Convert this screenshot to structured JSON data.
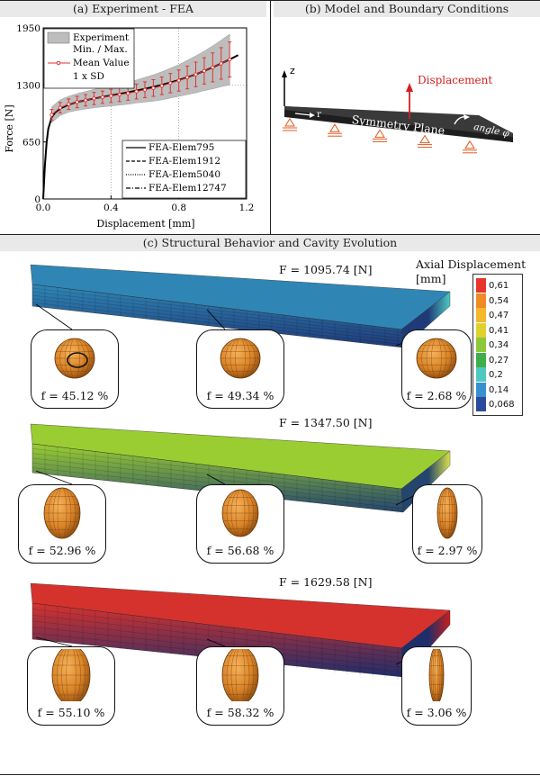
{
  "panels": {
    "a_title": "(a) Experiment - FEA",
    "b_title": "(b) Model and Boundary Conditions",
    "c_title": "(c) Structural Behavior and Cavity Evolution"
  },
  "chart_data": {
    "type": "line",
    "xlabel": "Displacement [mm]",
    "ylabel": "Force [N]",
    "xlim": [
      0,
      1.2
    ],
    "ylim": [
      0,
      1950
    ],
    "xticks": [
      "0.0",
      "0.4",
      "0.8",
      "1.2"
    ],
    "yticks": [
      "0",
      "650",
      "1300",
      "1950"
    ],
    "grid": "dotted reference lines at x=0.4, x=0.8 and y=1300",
    "legend_top": [
      "Experiment",
      "Min. / Max.",
      "Mean Value",
      "1 x SD"
    ],
    "legend_bottom": [
      "FEA-Elem795",
      "FEA-Elem1912",
      "FEA-Elem5040",
      "FEA-Elem12747"
    ],
    "series": [
      {
        "name": "FEA-Elem795",
        "style": "solid",
        "x": [
          0,
          0.01,
          0.02,
          0.03,
          0.05,
          0.07,
          0.1,
          0.15,
          0.2,
          0.3,
          0.4,
          0.5,
          0.6,
          0.7,
          0.8,
          0.9,
          1.0,
          1.1,
          1.15
        ],
        "y": [
          0,
          380,
          640,
          800,
          930,
          985,
          1030,
          1075,
          1105,
          1145,
          1180,
          1215,
          1255,
          1300,
          1355,
          1420,
          1500,
          1590,
          1640
        ]
      },
      {
        "name": "Mean Value",
        "x": [
          0.05,
          0.1,
          0.15,
          0.2,
          0.25,
          0.3,
          0.35,
          0.4,
          0.45,
          0.5,
          0.55,
          0.6,
          0.65,
          0.7,
          0.75,
          0.8,
          0.85,
          0.9,
          0.95,
          1.0,
          1.05,
          1.1
        ],
        "y": [
          960,
          1040,
          1080,
          1105,
          1125,
          1145,
          1160,
          1175,
          1190,
          1205,
          1225,
          1245,
          1265,
          1290,
          1320,
          1350,
          1385,
          1420,
          1460,
          1500,
          1545,
          1590
        ],
        "sd": [
          60,
          60,
          60,
          65,
          65,
          70,
          70,
          75,
          80,
          80,
          85,
          90,
          95,
          100,
          110,
          120,
          130,
          140,
          150,
          165,
          180,
          200
        ]
      }
    ],
    "band_halfwidth": [
      90,
      90,
      90,
      95,
      100,
      105,
      110,
      115,
      120,
      125,
      130,
      140,
      150,
      160,
      170,
      180,
      195,
      210,
      225,
      245,
      265,
      290
    ]
  },
  "model": {
    "axis_z": "z",
    "axis_r": "r",
    "displacement_label": "Displacement",
    "plane_label": "Symmetry Plane",
    "angle_label": "angle φ",
    "supports": 5
  },
  "legend_scale": {
    "title_line1": "Axial Displacement",
    "title_line2": "[mm]",
    "values": [
      "0,61",
      "0,54",
      "0,47",
      "0,41",
      "0,34",
      "0,27",
      "0,2",
      "0,14",
      "0,068"
    ],
    "colors": [
      "#e8352b",
      "#f08a24",
      "#f5b82a",
      "#e0d22c",
      "#8cc83a",
      "#3fae4a",
      "#4fc8c0",
      "#3a8fd0",
      "#2a4a9c"
    ]
  },
  "states": [
    {
      "force": "F = 1095.74 [N]",
      "beam_color": "#2f86b5",
      "cavities": [
        "f = 45.12 %",
        "f = 49.34 %",
        "f = 2.68 %"
      ]
    },
    {
      "force": "F = 1347.50 [N]",
      "beam_color": "#9acd32",
      "cavities": [
        "f = 52.96 %",
        "f = 56.68 %",
        "f = 2.97 %"
      ]
    },
    {
      "force": "F = 1629.58 [N]",
      "beam_color": "#d5322e",
      "cavities": [
        "f = 55.10 %",
        "f = 58.32 %",
        "f = 3.06 %"
      ]
    }
  ]
}
